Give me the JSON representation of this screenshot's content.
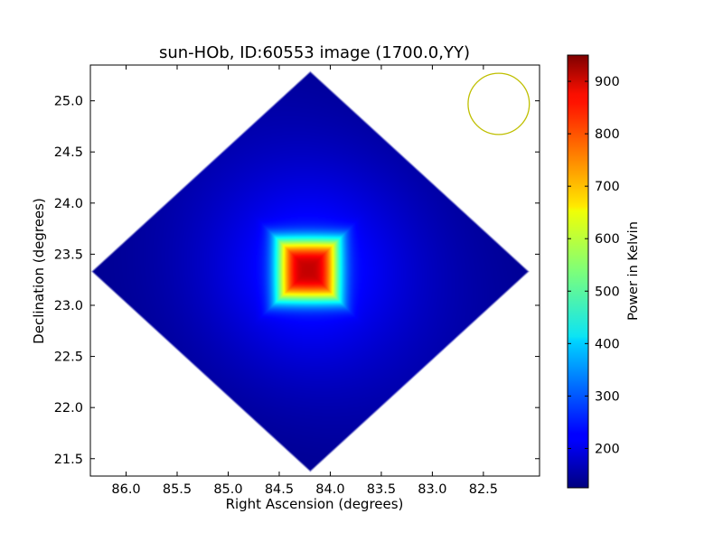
{
  "chart_data": {
    "type": "heatmap",
    "title": "sun-HOb, ID:60553 image (1700.0,YY)",
    "xlabel": "Right Ascension (degrees)",
    "ylabel": "Declination (degrees)",
    "xlim": [
      86.35,
      81.95
    ],
    "ylim": [
      21.33,
      25.35
    ],
    "x_inverted": true,
    "x_ticks": [
      86.0,
      85.5,
      85.0,
      84.5,
      84.0,
      83.5,
      83.0,
      82.5
    ],
    "x_tick_labels": [
      "86.0",
      "85.5",
      "85.0",
      "84.5",
      "84.0",
      "83.5",
      "83.0",
      "82.5"
    ],
    "y_ticks": [
      21.5,
      22.0,
      22.5,
      23.0,
      23.5,
      24.0,
      24.5,
      25.0
    ],
    "y_tick_labels": [
      "21.5",
      "22.0",
      "22.5",
      "23.0",
      "23.5",
      "24.0",
      "24.5",
      "25.0"
    ],
    "colormap": "jet",
    "colorbar": {
      "label": "Power in Kelvin",
      "vmin": 125,
      "vmax": 950,
      "ticks": [
        200,
        300,
        400,
        500,
        600,
        700,
        800,
        900
      ],
      "tick_labels": [
        "200",
        "300",
        "400",
        "500",
        "600",
        "700",
        "800",
        "900"
      ]
    },
    "image_extent": {
      "ra_min": 82.05,
      "ra_max": 86.35,
      "dec_min": 21.37,
      "dec_max": 25.3
    },
    "source": {
      "ra_center": 84.22,
      "dec_center": 23.35,
      "peak_value": 945,
      "background_value": 135
    },
    "beam": {
      "ra_center": 82.35,
      "dec_center": 24.97,
      "radius_deg": 0.3,
      "color": "#bfbf00"
    },
    "grid": false
  }
}
